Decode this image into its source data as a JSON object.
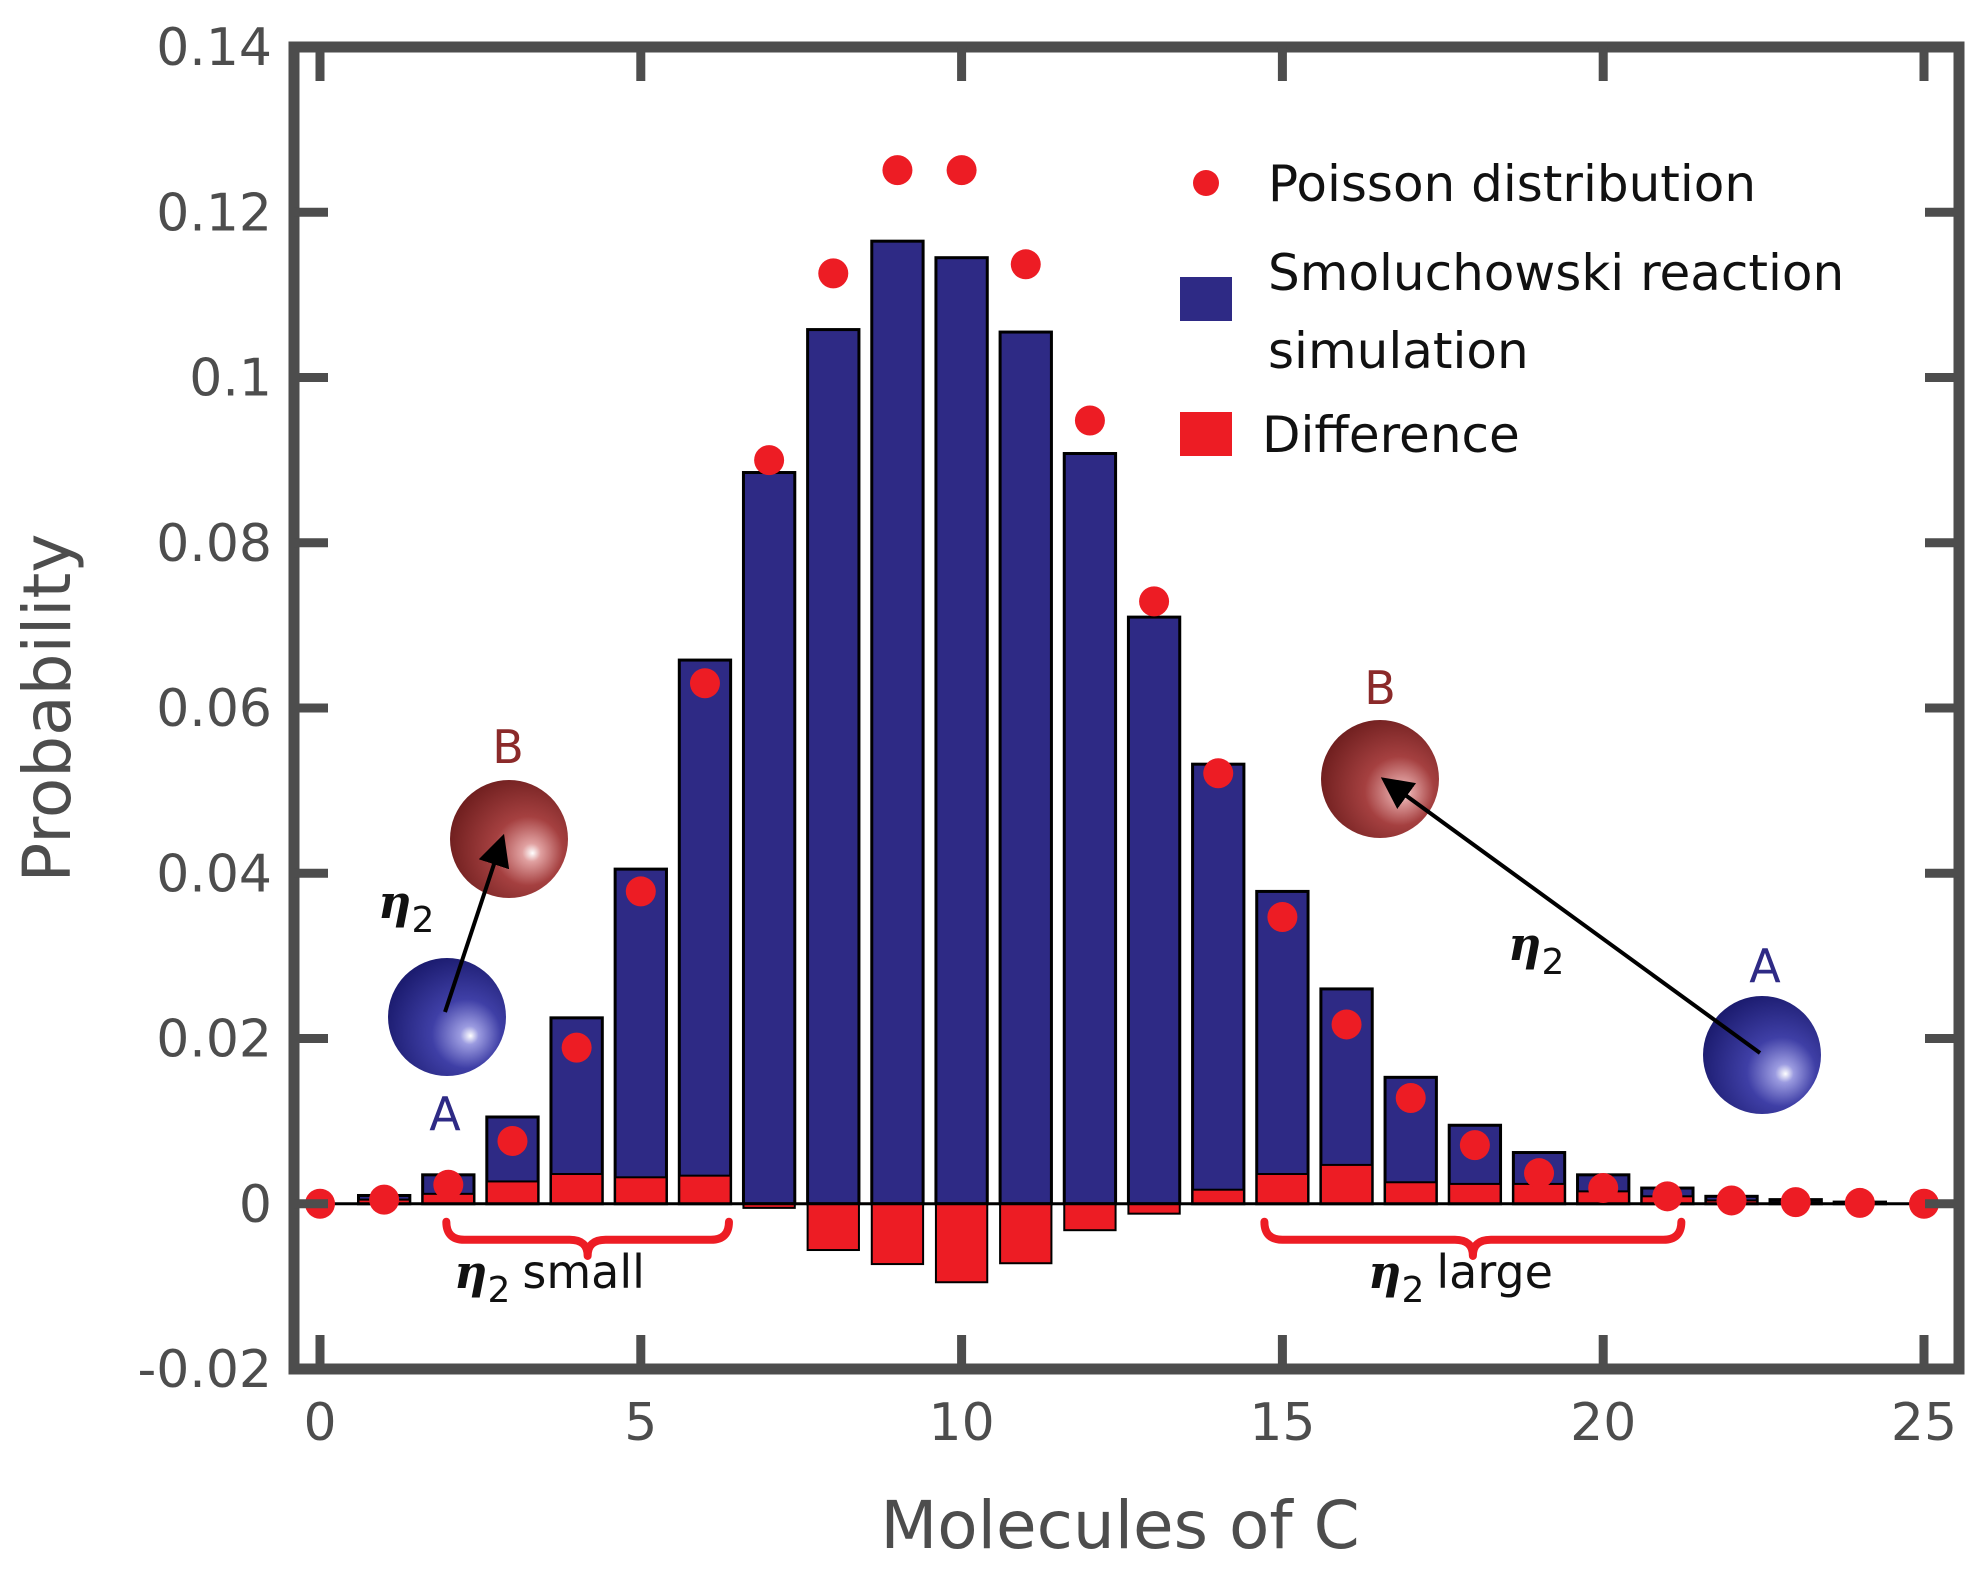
{
  "chart_data": {
    "type": "bar",
    "xlabel": "Molecules of C",
    "ylabel": "Probability",
    "xlim": [
      -0.5,
      25.5
    ],
    "ylim": [
      -0.02,
      0.14
    ],
    "xticks": [
      0,
      5,
      10,
      15,
      20,
      25
    ],
    "yticks": [
      -0.02,
      0,
      0.02,
      0.04,
      0.06,
      0.08,
      0.1,
      0.12,
      0.14
    ],
    "ytick_labels": [
      "-0.02",
      "0",
      "0.02",
      "0.04",
      "0.06",
      "0.08",
      "0.1",
      "0.12",
      "0.14"
    ],
    "x": [
      0,
      1,
      2,
      3,
      4,
      5,
      6,
      7,
      8,
      9,
      10,
      11,
      12,
      13,
      14,
      15,
      16,
      17,
      18,
      19,
      20,
      21,
      22,
      23,
      24,
      25
    ],
    "series": [
      {
        "name": "Smoluchowski reaction simulation",
        "kind": "bar",
        "color": "#2e2a85",
        "values": [
          0,
          0.001,
          0.0035,
          0.0105,
          0.0225,
          0.0405,
          0.0658,
          0.0885,
          0.1058,
          0.1165,
          0.1145,
          0.1055,
          0.0908,
          0.071,
          0.0532,
          0.0378,
          0.026,
          0.0153,
          0.0095,
          0.0062,
          0.0035,
          0.0019,
          0.0009,
          0.0005,
          0.0002,
          0
        ]
      },
      {
        "name": "Difference",
        "kind": "bar",
        "color": "#ed1c24",
        "values": [
          0,
          0.0005,
          0.0012,
          0.0027,
          0.0036,
          0.0032,
          0.0034,
          -0.0005,
          -0.0056,
          -0.0073,
          -0.0095,
          -0.0072,
          -0.0032,
          -0.0012,
          0.0017,
          0.0036,
          0.0047,
          0.0026,
          0.0024,
          0.0024,
          0.0015,
          0.0009,
          0.0004,
          0.0002,
          0.0001,
          0
        ]
      },
      {
        "name": "Poisson distribution",
        "kind": "scatter",
        "color": "#ed1c24",
        "values": [
          0,
          0.0005,
          0.0023,
          0.0076,
          0.0189,
          0.0378,
          0.063,
          0.09,
          0.1126,
          0.1251,
          0.1251,
          0.1137,
          0.0948,
          0.0729,
          0.0521,
          0.0347,
          0.0217,
          0.0128,
          0.0071,
          0.0037,
          0.0019,
          0.0009,
          0.0004,
          0.0002,
          0.0001,
          0
        ]
      }
    ],
    "legend": {
      "position": "top-right",
      "entries": [
        {
          "label": "Poisson distribution",
          "marker": "circle",
          "color": "#ed1c24"
        },
        {
          "label_lines": [
            "Smoluchowski reaction",
            "simulation"
          ],
          "marker": "square",
          "color": "#2e2a85"
        },
        {
          "label": "Difference",
          "marker": "square",
          "color": "#ed1c24"
        }
      ]
    },
    "annotations": {
      "eta_symbol": "η",
      "eta_subscript": "2",
      "small_label": "small",
      "large_label": "large",
      "sphere_a": "A",
      "sphere_b": "B",
      "small_range": [
        2,
        6
      ],
      "large_range": [
        15,
        21
      ]
    }
  },
  "colors": {
    "axis": "#4d4d4d",
    "bar_outline": "#000000",
    "bracket": "#ed1c24",
    "label_a": "#2e2a85",
    "label_b": "#8b2a2a"
  }
}
